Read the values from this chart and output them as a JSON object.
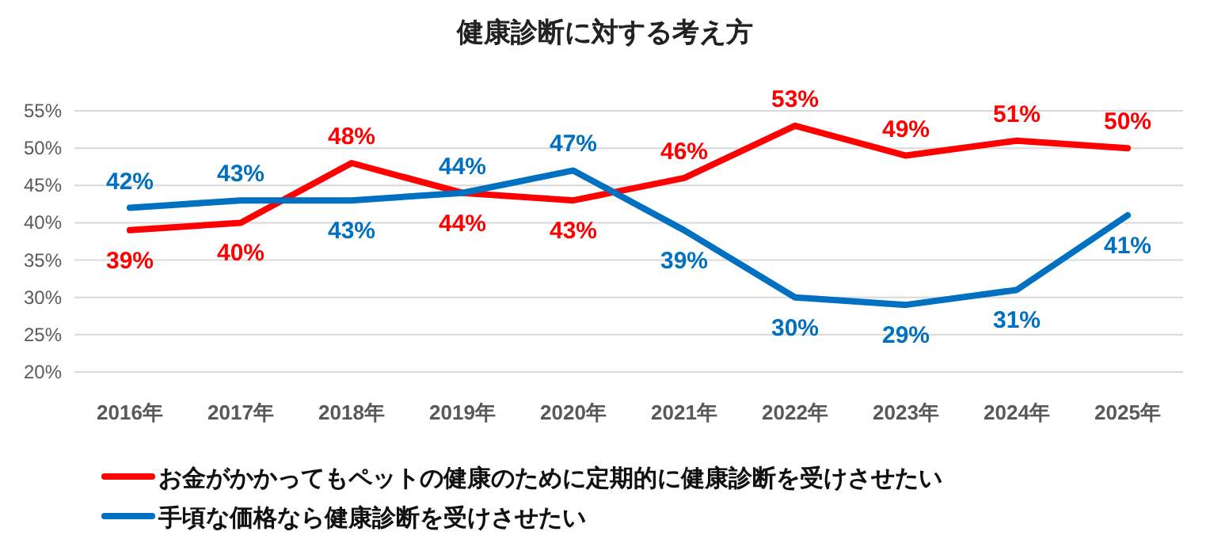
{
  "chart_data": {
    "type": "line",
    "title": "健康診断に対する考え方",
    "categories": [
      "2016年",
      "2017年",
      "2018年",
      "2019年",
      "2020年",
      "2021年",
      "2022年",
      "2023年",
      "2024年",
      "2025年"
    ],
    "series": [
      {
        "name": "お金がかかってもペットの健康のために定期的に健康診断を受けさせたい",
        "color": "#ff0000",
        "values": [
          39,
          40,
          48,
          44,
          43,
          46,
          53,
          49,
          51,
          50
        ],
        "value_labels": [
          "39%",
          "40%",
          "48%",
          "44%",
          "43%",
          "46%",
          "53%",
          "49%",
          "51%",
          "50%"
        ]
      },
      {
        "name": "手頃な価格なら健康診断を受けさせたい",
        "color": "#0070c0",
        "values": [
          42,
          43,
          43,
          44,
          47,
          39,
          30,
          29,
          31,
          41
        ],
        "value_labels": [
          "42%",
          "43%",
          "43%",
          "44%",
          "47%",
          "39%",
          "30%",
          "29%",
          "31%",
          "41%"
        ]
      }
    ],
    "ylim": [
      20,
      55
    ],
    "yticks": [
      {
        "value": 20,
        "label": "20%"
      },
      {
        "value": 25,
        "label": "25%"
      },
      {
        "value": 30,
        "label": "30%"
      },
      {
        "value": 35,
        "label": "35%"
      },
      {
        "value": 40,
        "label": "40%"
      },
      {
        "value": 45,
        "label": "45%"
      },
      {
        "value": 50,
        "label": "50%"
      },
      {
        "value": 55,
        "label": "55%"
      }
    ],
    "grid": "y",
    "legend": "bottom",
    "marker": "none",
    "line_style": "solid"
  }
}
